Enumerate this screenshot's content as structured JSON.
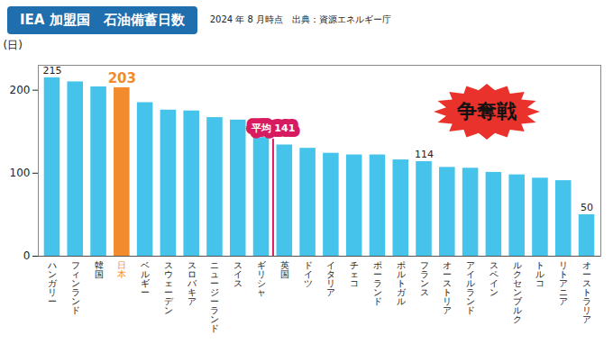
{
  "chart_data": {
    "type": "bar",
    "title": "IEA 加盟国　石油備蓄日数",
    "subtitle": "2024 年 8 月時点　出典：資源エネルギー庁",
    "y_label": "(日)",
    "categories": [
      "ハンガリー",
      "フィンランド",
      "韓国",
      "日本",
      "ベルギー",
      "スウェーデン",
      "スロバキア",
      "ニュージーランド",
      "スイス",
      "ギリシャ",
      "英国",
      "ドイツ",
      "イタリア",
      "チェコ",
      "ポーランド",
      "ポルトガル",
      "フランス",
      "オーストリア",
      "アイルランド",
      "スペイン",
      "ルクセンブルク",
      "トルコ",
      "リトアニア",
      "オーストラリア"
    ],
    "values": [
      215,
      210,
      204,
      203,
      185,
      176,
      175,
      167,
      164,
      143,
      134,
      130,
      124,
      122,
      122,
      116,
      114,
      107,
      106,
      101,
      98,
      94,
      91,
      50
    ],
    "value_labels": [
      "215",
      null,
      null,
      "203",
      null,
      null,
      null,
      null,
      null,
      null,
      null,
      null,
      null,
      null,
      null,
      null,
      "114",
      null,
      null,
      null,
      null,
      null,
      null,
      "50"
    ],
    "data_labels": true,
    "colors": [
      "#45c3ea",
      "#45c3ea",
      "#45c3ea",
      "#f28a2e",
      "#45c3ea",
      "#45c3ea",
      "#45c3ea",
      "#45c3ea",
      "#45c3ea",
      "#45c3ea",
      "#45c3ea",
      "#45c3ea",
      "#45c3ea",
      "#45c3ea",
      "#45c3ea",
      "#45c3ea",
      "#45c3ea",
      "#45c3ea",
      "#45c3ea",
      "#45c3ea",
      "#45c3ea",
      "#45c3ea",
      "#45c3ea",
      "#45c3ea"
    ],
    "ylim": [
      0,
      230
    ],
    "yticks": [
      0,
      100,
      200
    ],
    "grid": false,
    "annotations": [
      {
        "text": "平均",
        "value": 141,
        "between": [
          "ギリシャ",
          "英国"
        ]
      },
      {
        "text": "争奪戦"
      }
    ]
  }
}
